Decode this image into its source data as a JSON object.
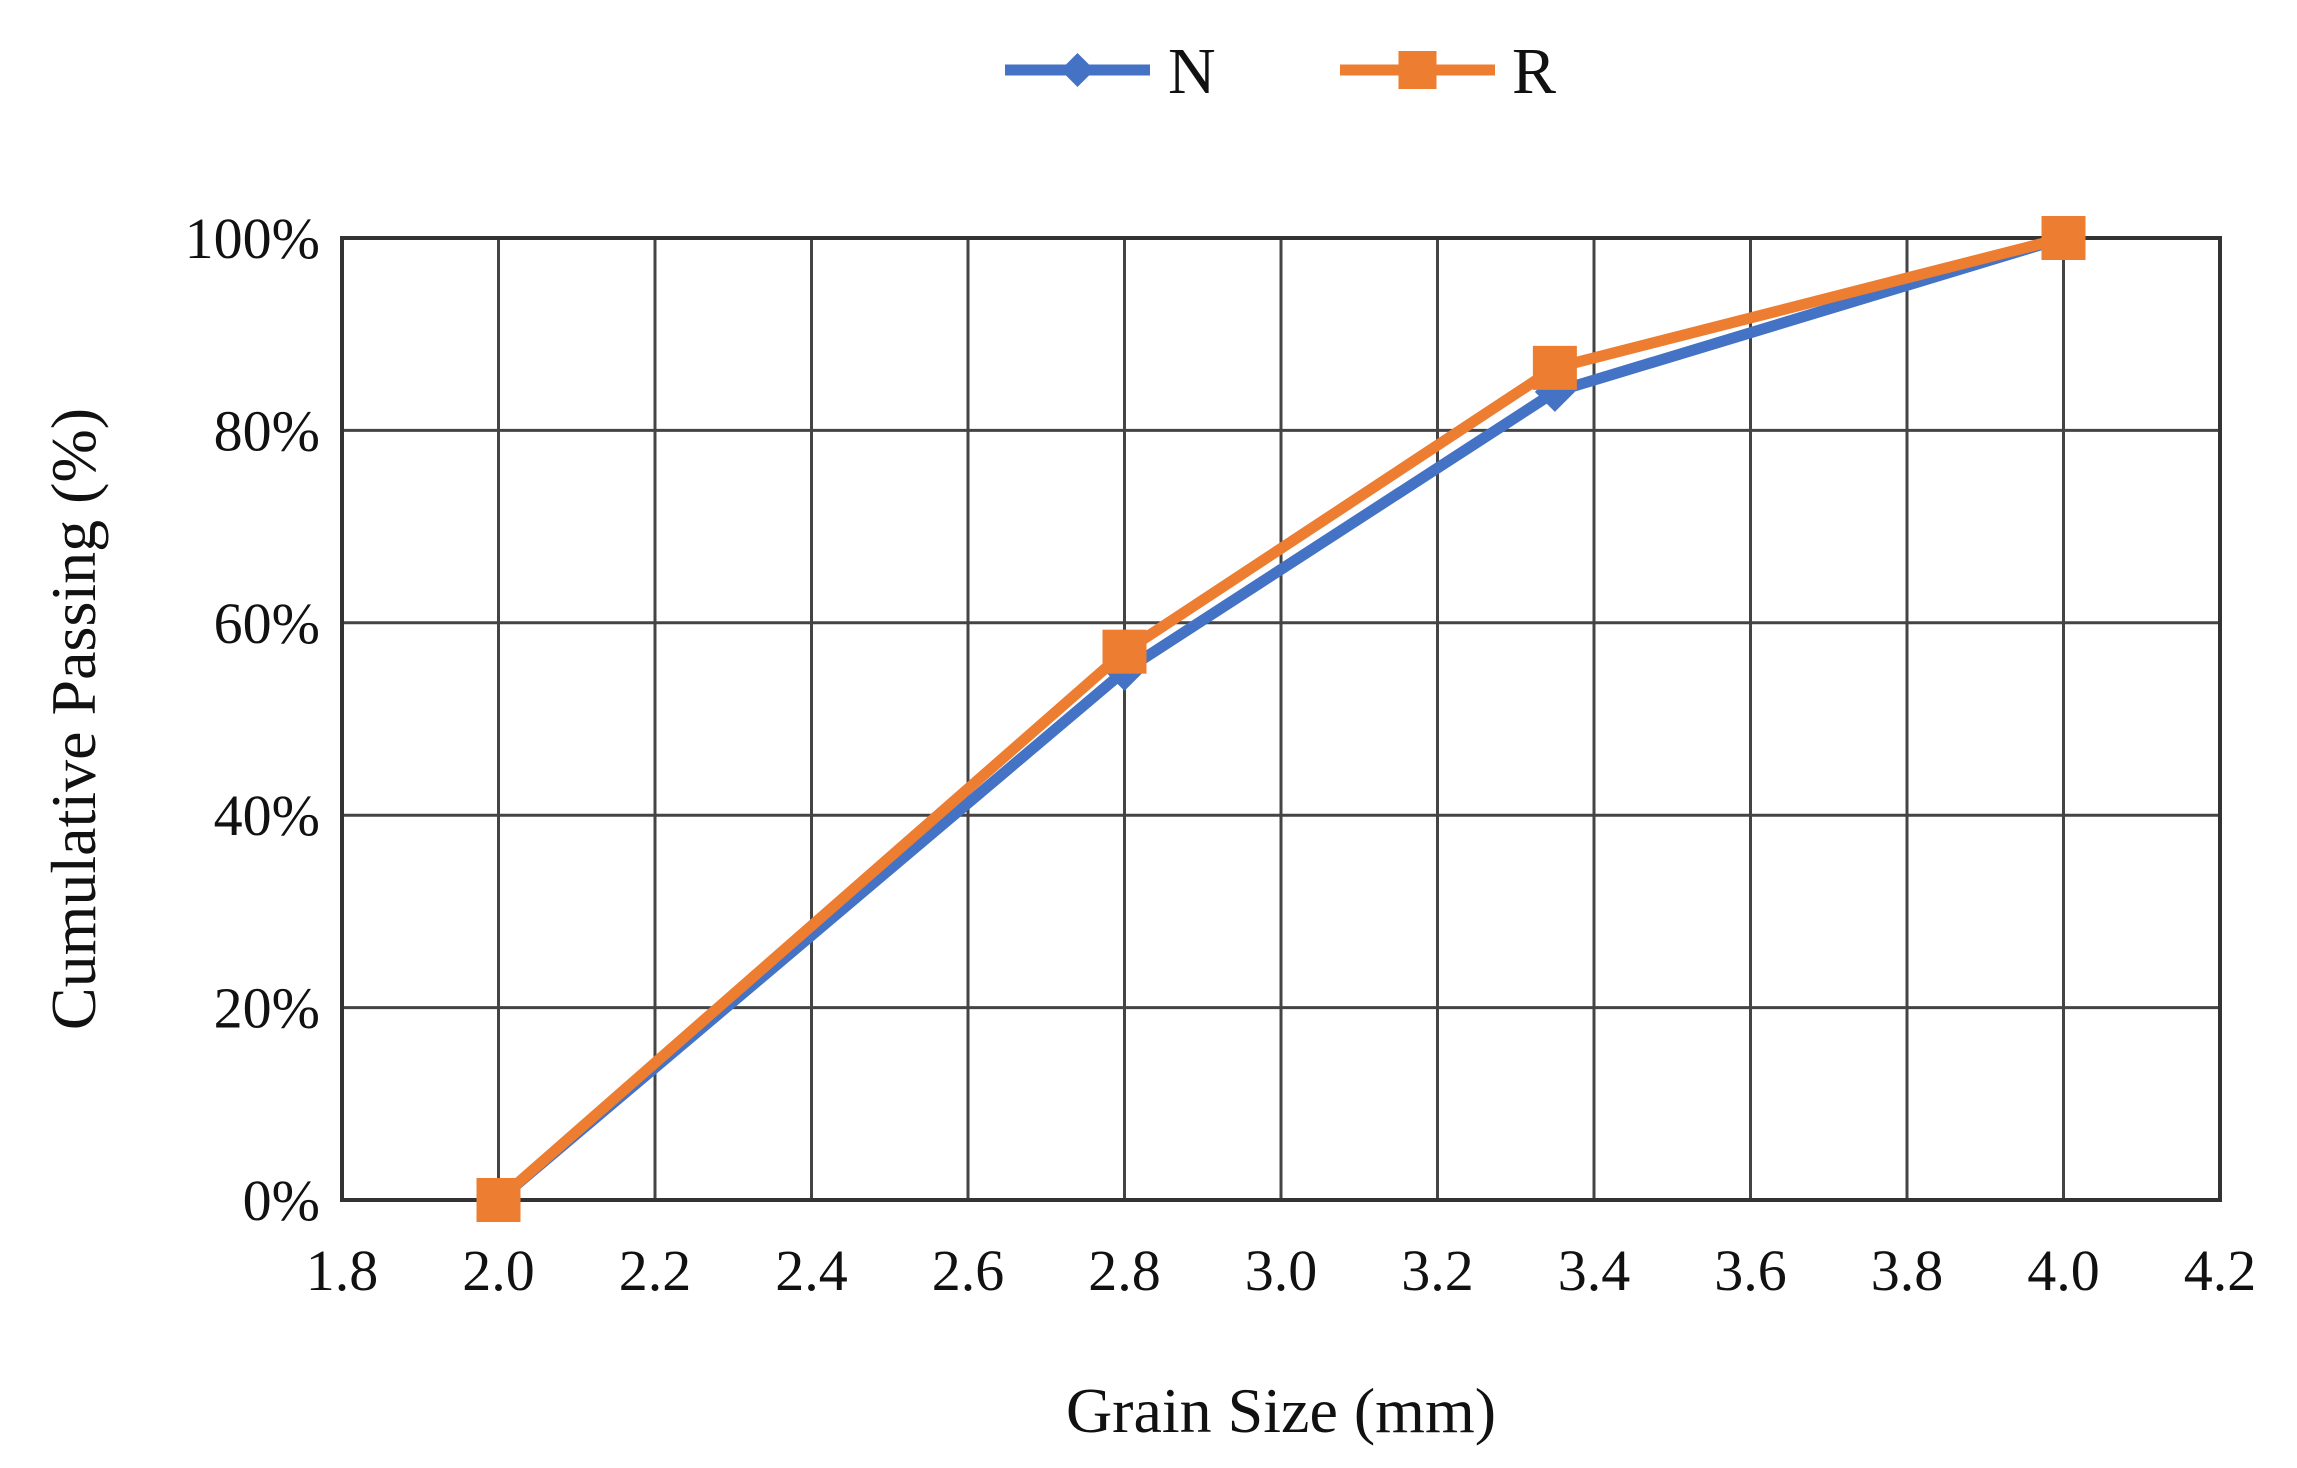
{
  "chart_data": {
    "type": "line",
    "title": "",
    "xlabel": "Grain Size (mm)",
    "ylabel": "Cumulative Passing (%)",
    "xlim": [
      1.8,
      4.2
    ],
    "ylim": [
      0,
      100
    ],
    "x_ticks": [
      1.8,
      2.0,
      2.2,
      2.4,
      2.6,
      2.8,
      3.0,
      3.2,
      3.4,
      3.6,
      3.8,
      4.0,
      4.2
    ],
    "x_tick_labels": [
      "1.8",
      "2.0",
      "2.2",
      "2.4",
      "2.6",
      "2.8",
      "3.0",
      "3.2",
      "3.4",
      "3.6",
      "3.8",
      "4.0",
      "4.2"
    ],
    "y_ticks": [
      0,
      20,
      40,
      60,
      80,
      100
    ],
    "y_tick_labels": [
      "0%",
      "20%",
      "40%",
      "60%",
      "80%",
      "100%"
    ],
    "grid": true,
    "legend_position": "top-center",
    "series": [
      {
        "name": "N",
        "color": "#4472C4",
        "marker": "diamond",
        "x": [
          2.0,
          2.8,
          3.35,
          4.0
        ],
        "y": [
          0,
          55,
          84,
          100
        ]
      },
      {
        "name": "R",
        "color": "#ED7D31",
        "marker": "square",
        "x": [
          2.0,
          2.8,
          3.35,
          4.0
        ],
        "y": [
          0,
          57,
          86.5,
          100
        ]
      }
    ]
  }
}
